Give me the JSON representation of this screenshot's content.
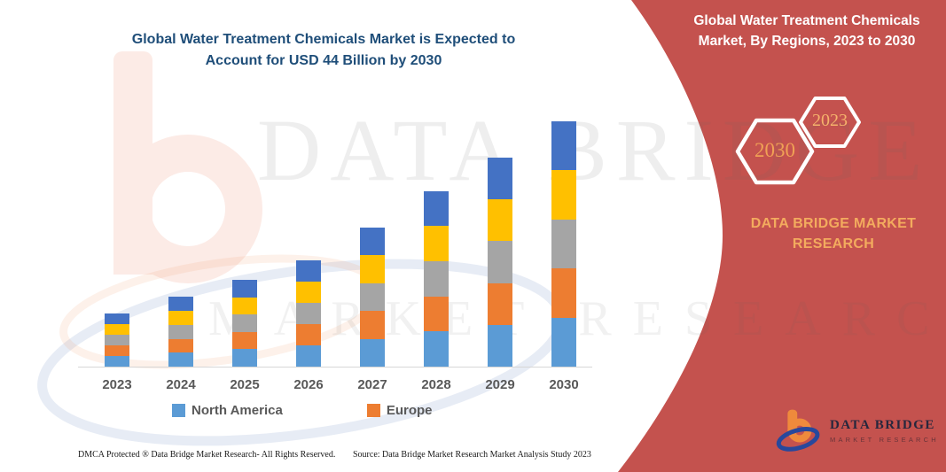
{
  "page": {
    "title_line1": "Global Water Treatment Chemicals Market is Expected to",
    "title_line2": "Account for USD 44 Billion by 2030",
    "title_color": "#1f4e79",
    "footer": {
      "left": "DMCA Protected ® Data Bridge Market Research-  All Rights Reserved.",
      "right": "Source: Data Bridge Market Research  Market Analysis Study 2023"
    }
  },
  "watermark": {
    "line1": "DATA BRIDGE",
    "line2": "MARKET RESEARCH"
  },
  "right_panel": {
    "background_color": "#c4524e",
    "title_line1": "Global Water Treatment Chemicals",
    "title_line2": "Market, By Regions, 2023 to 2030",
    "hexagon_front_label": "2030",
    "hexagon_back_label": "2023",
    "brand_line1": "DATA BRIDGE MARKET",
    "brand_line2": "RESEARCH",
    "brand_color": "#f3ab5e",
    "logo": {
      "name": "DATA BRIDGE",
      "tagline": "MARKET RESEARCH"
    }
  },
  "chart_data": {
    "type": "bar",
    "stacked": true,
    "title": "Global Water Treatment Chemicals Market is Expected to Account for USD 44 Billion by 2030",
    "unit": "USD Billion",
    "categories": [
      "2023",
      "2024",
      "2025",
      "2026",
      "2027",
      "2028",
      "2029",
      "2030"
    ],
    "totals": [
      9.5,
      12.5,
      15.5,
      19,
      25,
      31.5,
      37.5,
      44
    ],
    "series": [
      {
        "name": "North America",
        "color": "#5b9bd5",
        "in_legend": true,
        "values": [
          1.9,
          2.5,
          3.1,
          3.8,
          5.0,
          6.3,
          7.5,
          8.8
        ]
      },
      {
        "name": "Europe",
        "color": "#ed7d31",
        "in_legend": true,
        "values": [
          1.9,
          2.5,
          3.1,
          3.8,
          5.0,
          6.3,
          7.5,
          8.8
        ]
      },
      {
        "name": "unlabeled-gray-segment",
        "color": "#a5a5a5",
        "in_legend": false,
        "values": [
          1.9,
          2.5,
          3.1,
          3.8,
          5.0,
          6.3,
          7.5,
          8.8
        ]
      },
      {
        "name": "unlabeled-yellow-segment",
        "color": "#ffc000",
        "in_legend": false,
        "values": [
          1.9,
          2.5,
          3.1,
          3.8,
          5.0,
          6.3,
          7.5,
          8.8
        ]
      },
      {
        "name": "unlabeled-dark-blue-segment",
        "color": "#4472c4",
        "in_legend": false,
        "values": [
          1.9,
          2.5,
          3.1,
          3.8,
          5.0,
          6.3,
          7.5,
          8.8
        ]
      }
    ],
    "ylim": [
      0,
      44
    ],
    "y_axis_visible": false,
    "gridlines": false,
    "legend_position": "bottom"
  }
}
